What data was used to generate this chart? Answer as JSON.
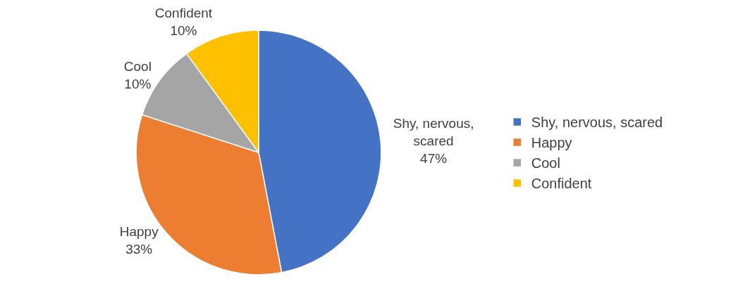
{
  "chart_data": {
    "type": "pie",
    "categories": [
      "Shy, nervous, scared",
      "Happy",
      "Cool",
      "Confident"
    ],
    "values": [
      47,
      33,
      10,
      10
    ],
    "colors": [
      "#4472c4",
      "#ed7d31",
      "#a5a5a5",
      "#ffc000"
    ],
    "value_labels": [
      "47%",
      "33%",
      "10%",
      "10%"
    ],
    "legend": "right"
  }
}
